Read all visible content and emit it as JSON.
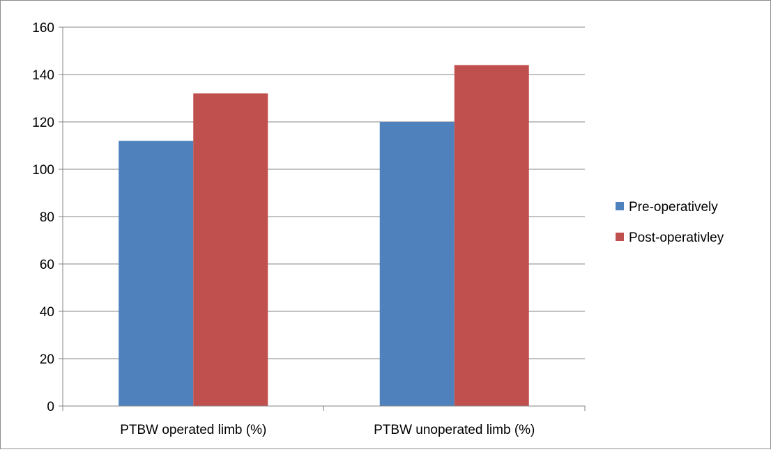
{
  "chart_data": {
    "type": "bar",
    "title": "",
    "xlabel": "",
    "ylabel": "",
    "categories": [
      "PTBW operated limb (%)",
      "PTBW unoperated limb (%)"
    ],
    "series": [
      {
        "name": "Pre-operatively",
        "values": [
          112,
          120
        ],
        "color": "#4F81BD"
      },
      {
        "name": "Post-operativley",
        "values": [
          132,
          144
        ],
        "color": "#C0504D"
      }
    ],
    "ylim": [
      0,
      160
    ],
    "yticks": [
      0,
      20,
      40,
      60,
      80,
      100,
      120,
      140,
      160
    ],
    "grid": true,
    "legend": "right",
    "colors": {
      "gridline": "#868686",
      "axis": "#868686",
      "border": "#8c8c8c"
    }
  }
}
